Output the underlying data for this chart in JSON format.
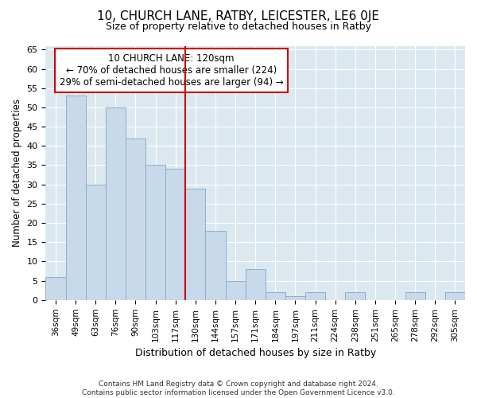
{
  "title_line1": "10, CHURCH LANE, RATBY, LEICESTER, LE6 0JE",
  "title_line2": "Size of property relative to detached houses in Ratby",
  "xlabel": "Distribution of detached houses by size in Ratby",
  "ylabel": "Number of detached properties",
  "categories": [
    "36sqm",
    "49sqm",
    "63sqm",
    "76sqm",
    "90sqm",
    "103sqm",
    "117sqm",
    "130sqm",
    "144sqm",
    "157sqm",
    "171sqm",
    "184sqm",
    "197sqm",
    "211sqm",
    "224sqm",
    "238sqm",
    "251sqm",
    "265sqm",
    "278sqm",
    "292sqm",
    "305sqm"
  ],
  "values": [
    6,
    53,
    30,
    50,
    42,
    35,
    34,
    29,
    18,
    5,
    8,
    2,
    1,
    2,
    0,
    2,
    0,
    0,
    2,
    0,
    2
  ],
  "bar_color": "#c8d9ea",
  "bar_edge_color": "#8ab0cc",
  "highlight_line_index": 6.5,
  "highlight_line_color": "#cc0000",
  "ylim": [
    0,
    66
  ],
  "yticks": [
    0,
    5,
    10,
    15,
    20,
    25,
    30,
    35,
    40,
    45,
    50,
    55,
    60,
    65
  ],
  "annotation_box_text": "10 CHURCH LANE: 120sqm\n← 70% of detached houses are smaller (224)\n29% of semi-detached houses are larger (94) →",
  "annotation_box_color": "#cc0000",
  "bg_color": "#dce8f0",
  "grid_color": "#ffffff",
  "fig_bg_color": "#ffffff",
  "footer_line1": "Contains HM Land Registry data © Crown copyright and database right 2024.",
  "footer_line2": "Contains public sector information licensed under the Open Government Licence v3.0."
}
